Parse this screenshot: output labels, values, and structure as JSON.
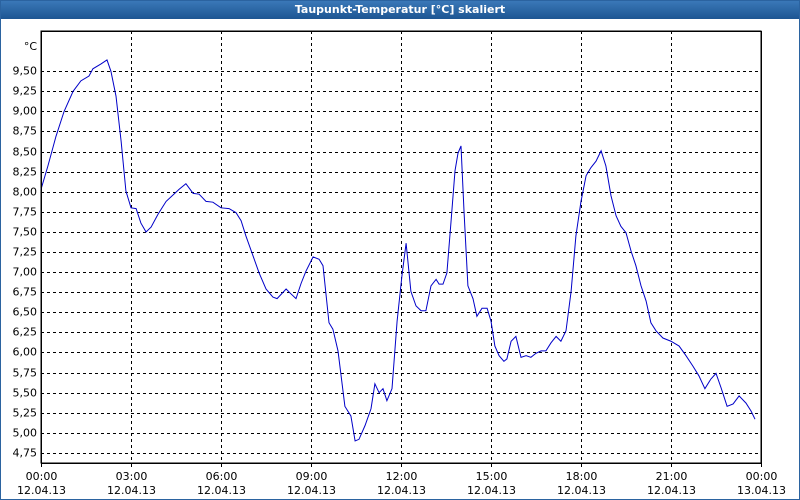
{
  "chart_data": {
    "type": "line",
    "title": "Taupunkt-Temperatur [°C] skaliert",
    "y_label": "°C",
    "color": "#0000c8",
    "grid": true,
    "xlim": [
      0,
      24
    ],
    "ylim": [
      4.625,
      10.0
    ],
    "xticks": [
      {
        "value": 0,
        "label": "00:00",
        "date": "12.04.13"
      },
      {
        "value": 3,
        "label": "03:00",
        "date": "12.04.13"
      },
      {
        "value": 6,
        "label": "06:00",
        "date": "12.04.13"
      },
      {
        "value": 9,
        "label": "09:00",
        "date": "12.04.13"
      },
      {
        "value": 12,
        "label": "12:00",
        "date": "12.04.13"
      },
      {
        "value": 15,
        "label": "15:00",
        "date": "12.04.13"
      },
      {
        "value": 18,
        "label": "18:00",
        "date": "12.04.13"
      },
      {
        "value": 21,
        "label": "21:00",
        "date": "12.04.13"
      },
      {
        "value": 24,
        "label": "00:00",
        "date": "13.04.13"
      }
    ],
    "yticks": [
      {
        "value": 4.75,
        "label": "4,75"
      },
      {
        "value": 5.0,
        "label": "5,00"
      },
      {
        "value": 5.25,
        "label": "5,25"
      },
      {
        "value": 5.5,
        "label": "5,50"
      },
      {
        "value": 5.75,
        "label": "5,75"
      },
      {
        "value": 6.0,
        "label": "6,00"
      },
      {
        "value": 6.25,
        "label": "6,25"
      },
      {
        "value": 6.5,
        "label": "6,50"
      },
      {
        "value": 6.75,
        "label": "6,75"
      },
      {
        "value": 7.0,
        "label": "7,00"
      },
      {
        "value": 7.25,
        "label": "7,25"
      },
      {
        "value": 7.5,
        "label": "7,50"
      },
      {
        "value": 7.75,
        "label": "7,75"
      },
      {
        "value": 8.0,
        "label": "8,00"
      },
      {
        "value": 8.25,
        "label": "8,25"
      },
      {
        "value": 8.5,
        "label": "8,50"
      },
      {
        "value": 8.75,
        "label": "8,75"
      },
      {
        "value": 9.0,
        "label": "9,00"
      },
      {
        "value": 9.25,
        "label": "9,25"
      },
      {
        "value": 9.5,
        "label": "9,50"
      }
    ],
    "x": [
      0,
      0.23,
      0.5,
      0.77,
      1.07,
      1.33,
      1.6,
      1.73,
      2,
      2.2,
      2.33,
      2.5,
      2.67,
      2.83,
      3,
      3.17,
      3.33,
      3.5,
      3.67,
      3.9,
      4.17,
      4.4,
      4.6,
      4.83,
      5.07,
      5.27,
      5.5,
      5.73,
      6,
      6.27,
      6.5,
      6.67,
      6.83,
      7.07,
      7.27,
      7.5,
      7.73,
      7.87,
      8.17,
      8.33,
      8.5,
      8.67,
      8.83,
      9.07,
      9.27,
      9.4,
      9.6,
      9.73,
      9.9,
      10.13,
      10.33,
      10.47,
      10.6,
      10.8,
      11,
      11.13,
      11.27,
      11.4,
      11.53,
      11.7,
      11.87,
      12.03,
      12.17,
      12.33,
      12.5,
      12.67,
      12.83,
      13,
      13.17,
      13.27,
      13.4,
      13.53,
      13.67,
      13.8,
      13.9,
      14,
      14.1,
      14.23,
      14.4,
      14.53,
      14.7,
      14.87,
      15,
      15.13,
      15.27,
      15.43,
      15.53,
      15.67,
      15.83,
      16,
      16.17,
      16.33,
      16.5,
      16.67,
      16.83,
      17,
      17.17,
      17.33,
      17.5,
      17.67,
      17.83,
      18,
      18.17,
      18.33,
      18.5,
      18.67,
      18.83,
      19,
      19.17,
      19.33,
      19.5,
      19.67,
      19.83,
      20,
      20.17,
      20.33,
      20.5,
      20.73,
      21,
      21.27,
      21.5,
      21.73,
      21.93,
      22.13,
      22.33,
      22.5,
      22.67,
      22.87,
      23.07,
      23.27,
      23.5,
      23.67,
      23.8
    ],
    "values": [
      8.03,
      8.32,
      8.69,
      9.0,
      9.25,
      9.38,
      9.44,
      9.53,
      9.59,
      9.64,
      9.5,
      9.19,
      8.63,
      8.01,
      7.8,
      7.79,
      7.61,
      7.5,
      7.56,
      7.72,
      7.88,
      7.96,
      8.03,
      8.1,
      7.98,
      7.97,
      7.88,
      7.87,
      7.8,
      7.79,
      7.74,
      7.64,
      7.45,
      7.2,
      6.99,
      6.79,
      6.69,
      6.67,
      6.79,
      6.73,
      6.67,
      6.86,
      7.01,
      7.19,
      7.16,
      7.08,
      6.37,
      6.29,
      6.02,
      5.33,
      5.21,
      4.9,
      4.92,
      5.09,
      5.3,
      5.61,
      5.5,
      5.55,
      5.4,
      5.55,
      6.39,
      6.95,
      7.36,
      6.76,
      6.58,
      6.52,
      6.52,
      6.83,
      6.91,
      6.85,
      6.85,
      6.99,
      7.64,
      8.26,
      8.48,
      8.57,
      7.76,
      6.83,
      6.67,
      6.45,
      6.55,
      6.55,
      6.39,
      6.08,
      5.96,
      5.89,
      5.92,
      6.14,
      6.2,
      5.94,
      5.96,
      5.94,
      5.99,
      6.02,
      6.02,
      6.12,
      6.2,
      6.14,
      6.27,
      6.76,
      7.45,
      7.88,
      8.2,
      8.3,
      8.38,
      8.51,
      8.32,
      7.95,
      7.7,
      7.57,
      7.49,
      7.26,
      7.08,
      6.83,
      6.64,
      6.37,
      6.27,
      6.18,
      6.14,
      6.08,
      5.96,
      5.83,
      5.71,
      5.55,
      5.67,
      5.74,
      5.56,
      5.33,
      5.36,
      5.46,
      5.37,
      5.27,
      5.17
    ]
  }
}
